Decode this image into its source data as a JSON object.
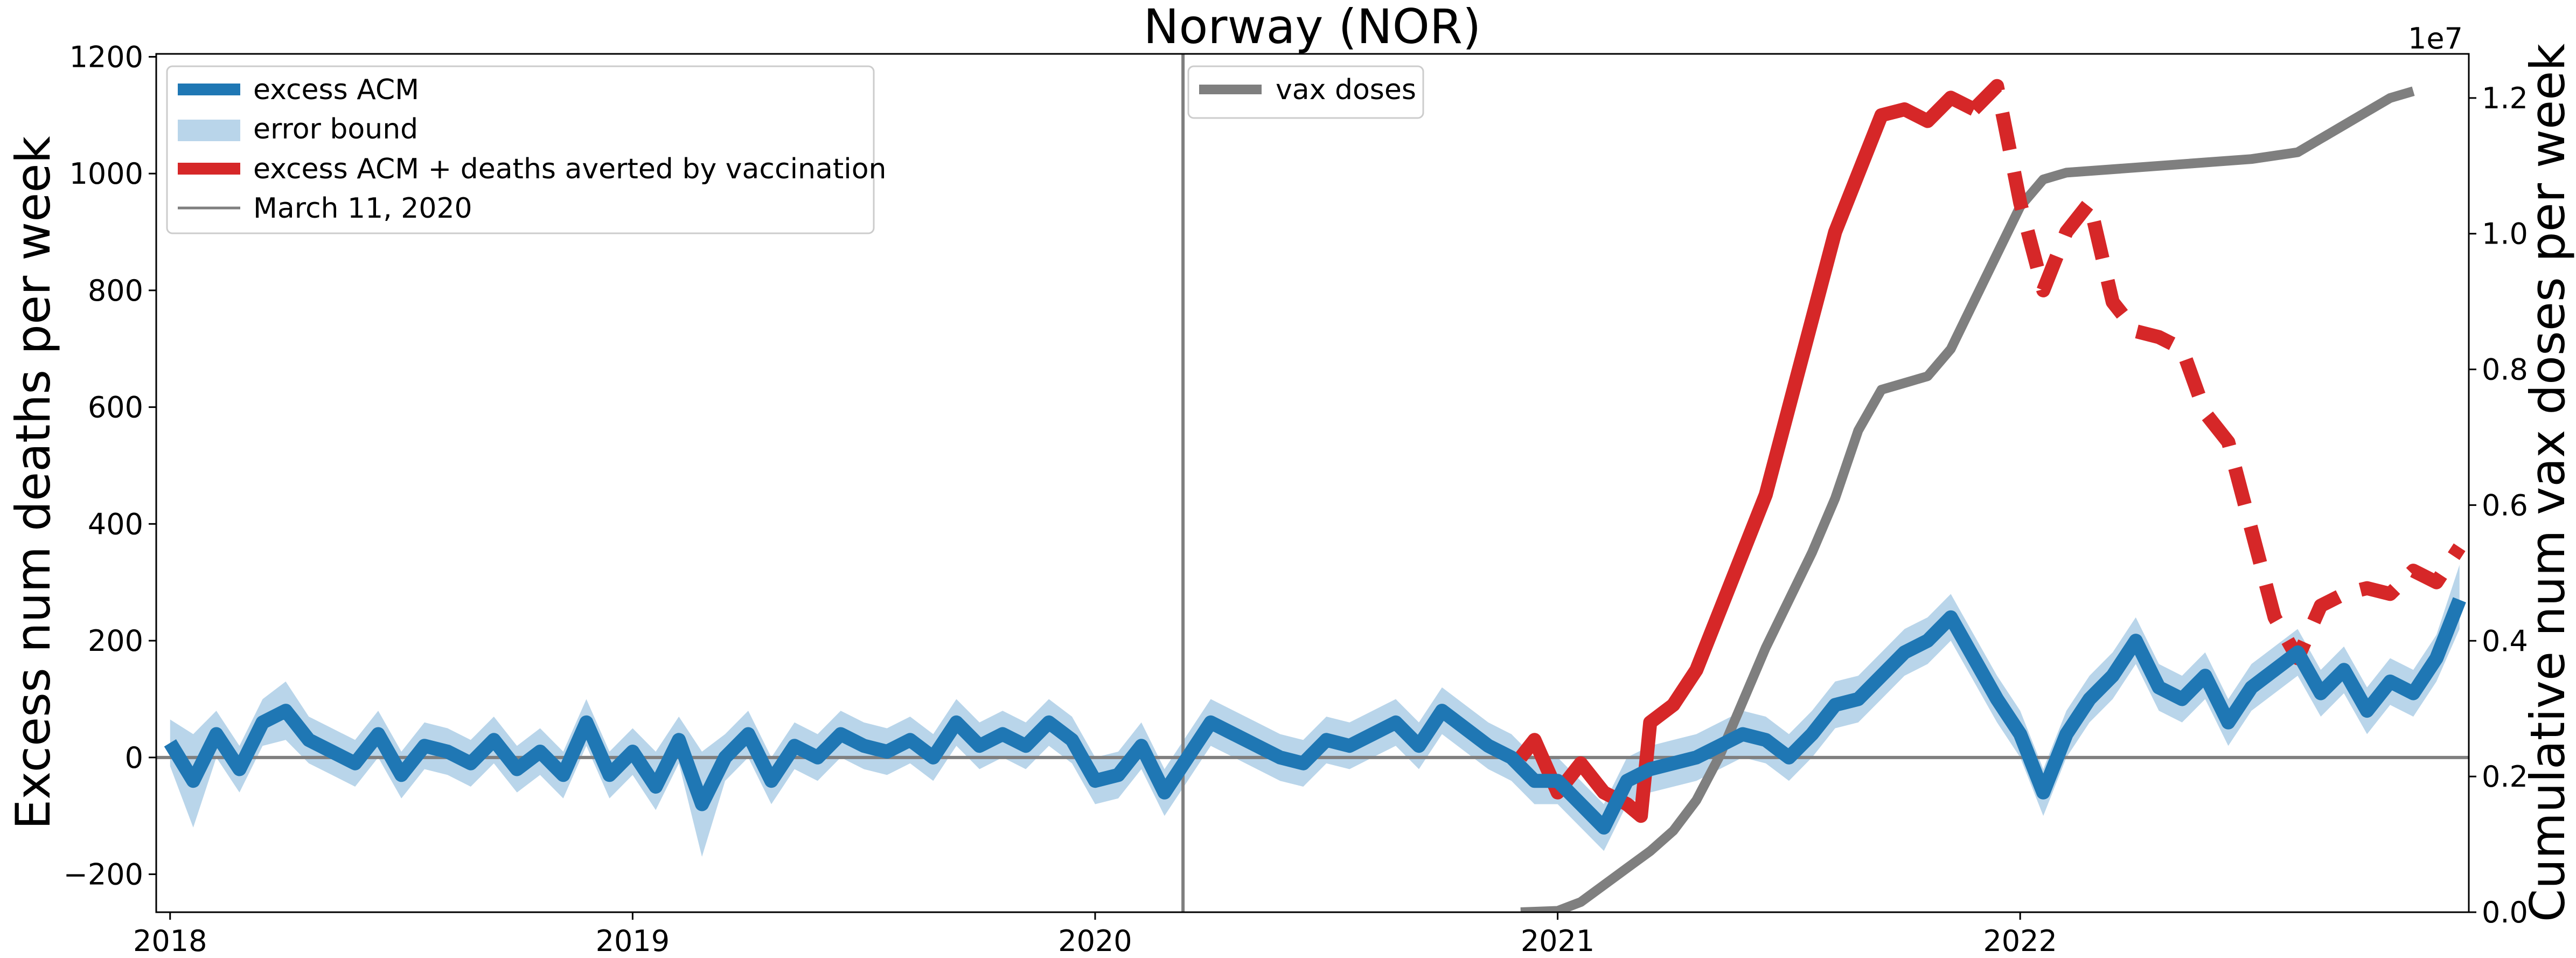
{
  "chart_data": {
    "type": "line",
    "title": "Norway (NOR)",
    "ylabel": "Excess num deaths per week",
    "ylabel_right": "Cumulative num vax doses per week",
    "right_axis_multiplier": "1e7",
    "xlim": [
      2017.97,
      2022.97
    ],
    "ylim": [
      -265,
      1205
    ],
    "ylim_right": [
      0,
      12650000
    ],
    "xticks": [
      2018,
      2019,
      2020,
      2021,
      2022
    ],
    "xtick_labels": [
      "2018",
      "2019",
      "2020",
      "2021",
      "2022"
    ],
    "yticks": [
      -200,
      0,
      200,
      400,
      600,
      800,
      1000,
      1200
    ],
    "yticks_right": [
      0,
      2000000,
      4000000,
      6000000,
      8000000,
      10000000,
      12000000
    ],
    "ytick_labels_right": [
      "0.0",
      "0.2",
      "0.4",
      "0.6",
      "0.8",
      "1.0",
      "1.2"
    ],
    "grid": false,
    "legend_left": {
      "placement": "upper left",
      "entries": [
        "excess ACM",
        "error bound",
        "excess ACM + deaths averted by vaccination",
        "March 11, 2020"
      ]
    },
    "legend_right": {
      "placement": "upper left",
      "entries": [
        "vax doses"
      ]
    },
    "reference_line": {
      "x": 2020.19,
      "label": "March 11, 2020"
    },
    "colors": {
      "excess": "#1f77b4",
      "error_band": "#b9d5ea",
      "averted": "#d62728",
      "vax": "#7f7f7f",
      "reference": "#7f7f7f"
    },
    "series": [
      {
        "name": "excess ACM",
        "x": [
          2018.0,
          2018.05,
          2018.1,
          2018.15,
          2018.2,
          2018.25,
          2018.3,
          2018.35,
          2018.4,
          2018.45,
          2018.5,
          2018.55,
          2018.6,
          2018.65,
          2018.7,
          2018.75,
          2018.8,
          2018.85,
          2018.9,
          2018.95,
          2019.0,
          2019.05,
          2019.1,
          2019.15,
          2019.2,
          2019.25,
          2019.3,
          2019.35,
          2019.4,
          2019.45,
          2019.5,
          2019.55,
          2019.6,
          2019.65,
          2019.7,
          2019.75,
          2019.8,
          2019.85,
          2019.9,
          2019.95,
          2020.0,
          2020.05,
          2020.1,
          2020.15,
          2020.2,
          2020.25,
          2020.3,
          2020.35,
          2020.4,
          2020.45,
          2020.5,
          2020.55,
          2020.6,
          2020.65,
          2020.7,
          2020.75,
          2020.8,
          2020.85,
          2020.9,
          2020.95,
          2021.0,
          2021.05,
          2021.1,
          2021.15,
          2021.2,
          2021.25,
          2021.3,
          2021.35,
          2021.4,
          2021.45,
          2021.5,
          2021.55,
          2021.6,
          2021.65,
          2021.7,
          2021.75,
          2021.8,
          2021.85,
          2021.9,
          2021.95,
          2022.0,
          2022.05,
          2022.1,
          2022.15,
          2022.2,
          2022.25,
          2022.3,
          2022.35,
          2022.4,
          2022.45,
          2022.5,
          2022.55,
          2022.6,
          2022.65,
          2022.7,
          2022.75,
          2022.8,
          2022.85,
          2022.9,
          2022.95
        ],
        "y": [
          25,
          -40,
          40,
          -20,
          60,
          80,
          30,
          10,
          -10,
          40,
          -30,
          20,
          10,
          -10,
          30,
          -20,
          10,
          -30,
          60,
          -30,
          10,
          -50,
          30,
          -80,
          0,
          40,
          -40,
          20,
          0,
          40,
          20,
          10,
          30,
          0,
          60,
          20,
          40,
          20,
          60,
          30,
          -40,
          -30,
          20,
          -60,
          0,
          60,
          40,
          20,
          0,
          -10,
          30,
          20,
          40,
          60,
          20,
          80,
          50,
          20,
          0,
          -40,
          -40,
          -80,
          -120,
          -40,
          -20,
          -10,
          0,
          20,
          40,
          30,
          0,
          40,
          90,
          100,
          140,
          180,
          200,
          240,
          170,
          100,
          40,
          -60,
          40,
          100,
          140,
          200,
          120,
          100,
          140,
          60,
          120,
          150,
          180,
          110,
          150,
          80,
          130,
          110,
          170,
          270
        ]
      },
      {
        "name": "error bound",
        "x": [
          2018.0,
          2018.05,
          2018.1,
          2018.15,
          2018.2,
          2018.25,
          2018.3,
          2018.35,
          2018.4,
          2018.45,
          2018.5,
          2018.55,
          2018.6,
          2018.65,
          2018.7,
          2018.75,
          2018.8,
          2018.85,
          2018.9,
          2018.95,
          2019.0,
          2019.05,
          2019.1,
          2019.15,
          2019.2,
          2019.25,
          2019.3,
          2019.35,
          2019.4,
          2019.45,
          2019.5,
          2019.55,
          2019.6,
          2019.65,
          2019.7,
          2019.75,
          2019.8,
          2019.85,
          2019.9,
          2019.95,
          2020.0,
          2020.05,
          2020.1,
          2020.15,
          2020.2,
          2020.25,
          2020.3,
          2020.35,
          2020.4,
          2020.45,
          2020.5,
          2020.55,
          2020.6,
          2020.65,
          2020.7,
          2020.75,
          2020.8,
          2020.85,
          2020.9,
          2020.95,
          2021.0,
          2021.05,
          2021.1,
          2021.15,
          2021.2,
          2021.25,
          2021.3,
          2021.35,
          2021.4,
          2021.45,
          2021.5,
          2021.55,
          2021.6,
          2021.65,
          2021.7,
          2021.75,
          2021.8,
          2021.85,
          2021.9,
          2021.95,
          2022.0,
          2022.05,
          2022.1,
          2022.15,
          2022.2,
          2022.25,
          2022.3,
          2022.35,
          2022.4,
          2022.45,
          2022.5,
          2022.55,
          2022.6,
          2022.65,
          2022.7,
          2022.75,
          2022.8,
          2022.85,
          2022.9,
          2022.95
        ],
        "lower": [
          -15,
          -120,
          0,
          -60,
          20,
          30,
          -10,
          -30,
          -50,
          0,
          -70,
          -20,
          -30,
          -50,
          -10,
          -60,
          -30,
          -70,
          20,
          -70,
          -30,
          -90,
          -10,
          -170,
          -40,
          0,
          -80,
          -20,
          -40,
          0,
          -20,
          -30,
          -10,
          -40,
          20,
          -20,
          0,
          -20,
          20,
          -10,
          -80,
          -70,
          -20,
          -100,
          -40,
          20,
          0,
          -20,
          -40,
          -50,
          -10,
          -20,
          0,
          20,
          -20,
          40,
          10,
          -20,
          -40,
          -80,
          -80,
          -120,
          -160,
          -80,
          -60,
          -50,
          -40,
          -20,
          0,
          -10,
          -40,
          0,
          50,
          60,
          100,
          140,
          160,
          200,
          130,
          60,
          0,
          -100,
          0,
          60,
          100,
          160,
          80,
          60,
          100,
          20,
          80,
          110,
          140,
          70,
          110,
          40,
          90,
          70,
          130,
          220
        ],
        "upper": [
          65,
          40,
          80,
          20,
          100,
          130,
          70,
          50,
          30,
          80,
          10,
          60,
          50,
          30,
          70,
          20,
          50,
          10,
          100,
          10,
          50,
          10,
          70,
          10,
          40,
          80,
          0,
          60,
          40,
          80,
          60,
          50,
          70,
          40,
          100,
          60,
          80,
          60,
          100,
          70,
          0,
          10,
          60,
          -20,
          40,
          100,
          80,
          60,
          40,
          30,
          70,
          60,
          80,
          100,
          60,
          120,
          90,
          60,
          40,
          0,
          0,
          -40,
          -80,
          0,
          20,
          30,
          40,
          60,
          80,
          70,
          40,
          80,
          130,
          140,
          180,
          220,
          240,
          280,
          210,
          140,
          80,
          -20,
          80,
          140,
          180,
          240,
          160,
          140,
          180,
          100,
          160,
          190,
          220,
          150,
          190,
          120,
          170,
          150,
          210,
          330
        ]
      },
      {
        "name": "excess ACM + deaths averted by vaccination",
        "x": [
          2020.92,
          2020.95,
          2021.0,
          2021.05,
          2021.1,
          2021.15,
          2021.18,
          2021.2,
          2021.25,
          2021.3,
          2021.35,
          2021.4,
          2021.45,
          2021.5,
          2021.55,
          2021.6,
          2021.65,
          2021.7,
          2021.75,
          2021.8,
          2021.85,
          2021.9,
          2021.95,
          2022.0,
          2022.05,
          2022.1,
          2022.15,
          2022.2,
          2022.25,
          2022.3,
          2022.35,
          2022.4,
          2022.45,
          2022.5,
          2022.55,
          2022.6,
          2022.65,
          2022.7,
          2022.75,
          2022.8,
          2022.85,
          2022.9,
          2022.95
        ],
        "y": [
          0,
          30,
          -60,
          -10,
          -60,
          -80,
          -100,
          60,
          90,
          150,
          250,
          350,
          450,
          600,
          750,
          900,
          1000,
          1100,
          1110,
          1090,
          1130,
          1110,
          1150,
          950,
          800,
          900,
          950,
          780,
          730,
          720,
          700,
          590,
          540,
          390,
          240,
          170,
          260,
          280,
          290,
          280,
          320,
          300,
          360
        ],
        "solid_until_x": 2021.9
      },
      {
        "name": "vax doses",
        "axis": "right",
        "x": [
          2020.92,
          2021.0,
          2021.05,
          2021.1,
          2021.15,
          2021.2,
          2021.25,
          2021.3,
          2021.35,
          2021.4,
          2021.45,
          2021.5,
          2021.55,
          2021.6,
          2021.65,
          2021.7,
          2021.75,
          2021.8,
          2021.85,
          2021.9,
          2021.95,
          2022.0,
          2022.05,
          2022.1,
          2022.2,
          2022.3,
          2022.4,
          2022.5,
          2022.6,
          2022.65,
          2022.7,
          2022.75,
          2022.8,
          2022.85
        ],
        "y": [
          0,
          20000,
          150000,
          400000,
          650000,
          900000,
          1200000,
          1650000,
          2300000,
          3100000,
          3900000,
          4600000,
          5300000,
          6100000,
          7100000,
          7700000,
          7800000,
          7900000,
          8300000,
          9000000,
          9700000,
          10400000,
          10800000,
          10900000,
          10950000,
          11000000,
          11050000,
          11100000,
          11200000,
          11400000,
          11600000,
          11800000,
          12000000,
          12100000
        ]
      }
    ]
  }
}
